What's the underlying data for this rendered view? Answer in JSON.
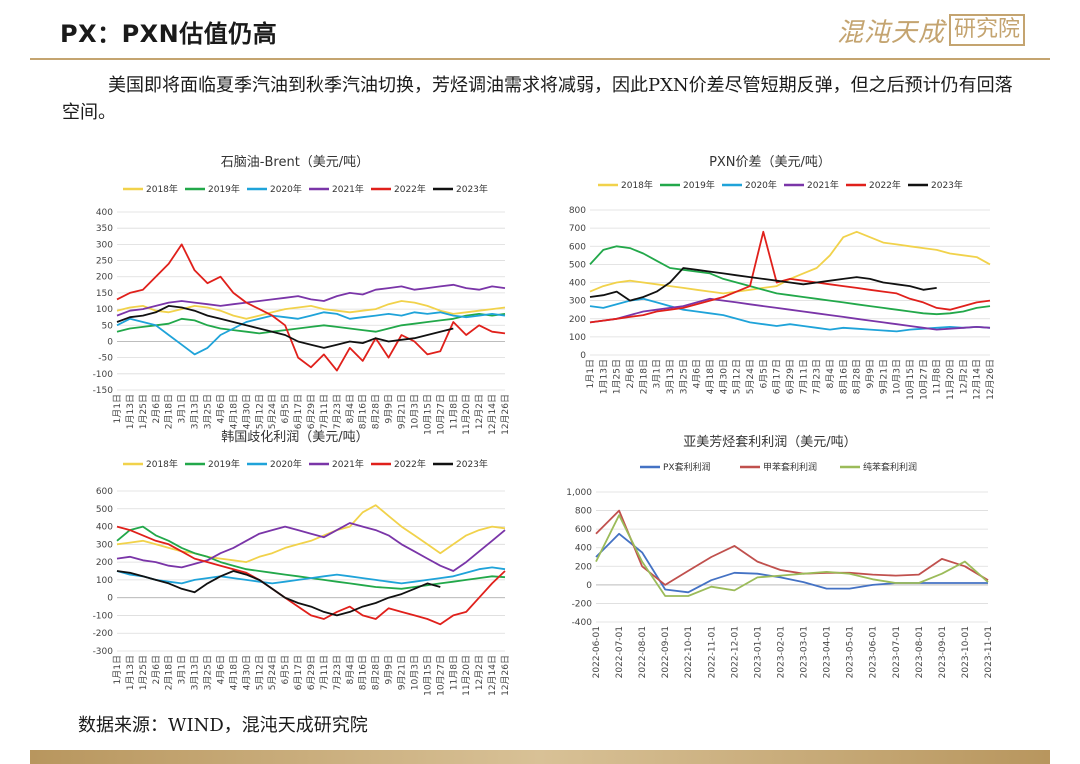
{
  "header": {
    "title": "PX：PXN估值仍高",
    "logo_text": "混沌天成",
    "logo_box_text": "研究院",
    "accent_color": "#c4a470"
  },
  "intro": "美国即将面临夏季汽油到秋季汽油切换，芳烃调油需求将减弱，因此PXN价差尽管短期反弹，但之后预计仍有回落空间。",
  "source": "数据来源：WIND，混沌天成研究院",
  "chart_data": [
    {
      "type": "line",
      "title": "石脑油-Brent（美元/吨）",
      "ylim": [
        -150,
        400
      ],
      "yticks": [
        400,
        350,
        300,
        250,
        200,
        150,
        100,
        50,
        0,
        -50,
        -100,
        -150
      ],
      "categories": [
        "1月1日",
        "1月13日",
        "1月25日",
        "2月6日",
        "2月18日",
        "3月1日",
        "3月13日",
        "3月25日",
        "4月6日",
        "4月18日",
        "4月30日",
        "5月12日",
        "5月24日",
        "6月5日",
        "6月17日",
        "6月29日",
        "7月11日",
        "7月23日",
        "8月4日",
        "8月16日",
        "8月28日",
        "9月9日",
        "9月21日",
        "10月3日",
        "10月15日",
        "10月27日",
        "11月8日",
        "11月20日",
        "12月2日",
        "12月14日",
        "12月26日"
      ],
      "series": [
        {
          "name": "2018年",
          "color": "#f1d24b",
          "values": [
            95,
            105,
            110,
            95,
            90,
            100,
            110,
            105,
            95,
            80,
            70,
            80,
            90,
            100,
            105,
            110,
            100,
            95,
            90,
            95,
            100,
            115,
            125,
            120,
            110,
            95,
            85,
            90,
            95,
            100,
            105
          ]
        },
        {
          "name": "2019年",
          "color": "#22a84a",
          "values": [
            30,
            40,
            45,
            50,
            55,
            70,
            65,
            50,
            40,
            35,
            30,
            25,
            30,
            35,
            40,
            45,
            50,
            45,
            40,
            35,
            30,
            40,
            50,
            55,
            60,
            65,
            70,
            80,
            85,
            80,
            85
          ]
        },
        {
          "name": "2020年",
          "color": "#1fa3d9",
          "values": [
            50,
            70,
            60,
            50,
            20,
            -10,
            -40,
            -20,
            20,
            40,
            60,
            70,
            80,
            75,
            70,
            80,
            90,
            85,
            70,
            75,
            80,
            85,
            80,
            90,
            85,
            90,
            80,
            75,
            80,
            85,
            80
          ]
        },
        {
          "name": "2021年",
          "color": "#7a35a8",
          "values": [
            80,
            95,
            100,
            110,
            120,
            125,
            120,
            115,
            110,
            115,
            120,
            125,
            130,
            135,
            140,
            130,
            125,
            140,
            150,
            145,
            160,
            165,
            170,
            160,
            165,
            170,
            175,
            165,
            160,
            170,
            165
          ]
        },
        {
          "name": "2022年",
          "color": "#e0201b",
          "values": [
            130,
            150,
            160,
            200,
            240,
            300,
            220,
            180,
            200,
            150,
            120,
            100,
            80,
            50,
            -50,
            -80,
            -40,
            -90,
            -20,
            -60,
            10,
            -50,
            20,
            0,
            -40,
            -30,
            60,
            20,
            50,
            30,
            25
          ]
        },
        {
          "name": "2023年",
          "color": "#111111",
          "values": [
            60,
            75,
            80,
            90,
            110,
            105,
            95,
            80,
            70,
            60,
            50,
            40,
            30,
            20,
            0,
            -10,
            -20,
            -10,
            0,
            -5,
            10,
            0,
            5,
            10,
            20,
            30,
            40,
            null,
            null,
            null,
            null
          ]
        }
      ]
    },
    {
      "type": "line",
      "title": "PXN价差（美元/吨）",
      "ylim": [
        0,
        800
      ],
      "yticks": [
        800,
        700,
        600,
        500,
        400,
        300,
        200,
        100,
        0
      ],
      "categories": [
        "1月1日",
        "1月13日",
        "1月25日",
        "2月6日",
        "2月18日",
        "3月1日",
        "3月13日",
        "3月25日",
        "4月6日",
        "4月18日",
        "4月30日",
        "5月12日",
        "5月24日",
        "6月5日",
        "6月17日",
        "6月29日",
        "7月11日",
        "7月23日",
        "8月4日",
        "8月16日",
        "8月28日",
        "9月9日",
        "9月21日",
        "10月3日",
        "10月15日",
        "10月27日",
        "11月8日",
        "11月20日",
        "12月2日",
        "12月14日",
        "12月26日"
      ],
      "series": [
        {
          "name": "2018年",
          "color": "#f1d24b",
          "values": [
            350,
            380,
            400,
            410,
            400,
            390,
            380,
            370,
            360,
            350,
            340,
            350,
            360,
            370,
            380,
            420,
            450,
            480,
            550,
            650,
            680,
            650,
            620,
            610,
            600,
            590,
            580,
            560,
            550,
            540,
            500
          ]
        },
        {
          "name": "2019年",
          "color": "#22a84a",
          "values": [
            500,
            580,
            600,
            590,
            560,
            520,
            480,
            470,
            460,
            450,
            420,
            400,
            380,
            360,
            340,
            330,
            320,
            310,
            300,
            290,
            280,
            270,
            260,
            250,
            240,
            230,
            225,
            230,
            240,
            260,
            270
          ]
        },
        {
          "name": "2020年",
          "color": "#1fa3d9",
          "values": [
            270,
            260,
            280,
            300,
            310,
            290,
            270,
            250,
            240,
            230,
            220,
            200,
            180,
            170,
            160,
            170,
            160,
            150,
            140,
            150,
            145,
            140,
            135,
            130,
            140,
            145,
            150,
            155,
            150,
            155,
            150
          ]
        },
        {
          "name": "2021年",
          "color": "#7a35a8",
          "values": [
            180,
            190,
            200,
            220,
            240,
            250,
            260,
            270,
            290,
            310,
            300,
            290,
            280,
            270,
            260,
            250,
            240,
            230,
            220,
            210,
            200,
            190,
            180,
            170,
            160,
            150,
            140,
            145,
            150,
            155,
            150
          ]
        },
        {
          "name": "2022年",
          "color": "#e0201b",
          "values": [
            180,
            190,
            200,
            210,
            220,
            240,
            250,
            260,
            280,
            300,
            320,
            350,
            380,
            680,
            400,
            420,
            410,
            400,
            390,
            380,
            370,
            360,
            350,
            340,
            310,
            290,
            260,
            250,
            270,
            290,
            300
          ]
        },
        {
          "name": "2023年",
          "color": "#111111",
          "values": [
            320,
            330,
            350,
            300,
            320,
            350,
            400,
            480,
            470,
            460,
            450,
            440,
            430,
            420,
            410,
            400,
            390,
            400,
            410,
            420,
            430,
            420,
            400,
            390,
            380,
            360,
            370,
            null,
            null,
            null,
            null
          ]
        }
      ]
    },
    {
      "type": "line",
      "title": "韩国歧化利润（美元/吨）",
      "ylim": [
        -300,
        600
      ],
      "yticks": [
        600,
        500,
        400,
        300,
        200,
        100,
        0,
        -100,
        -200,
        -300
      ],
      "categories": [
        "1月1日",
        "1月13日",
        "1月25日",
        "2月6日",
        "2月18日",
        "3月1日",
        "3月13日",
        "3月25日",
        "4月6日",
        "4月18日",
        "4月30日",
        "5月12日",
        "5月24日",
        "6月5日",
        "6月17日",
        "6月29日",
        "7月11日",
        "7月23日",
        "8月4日",
        "8月16日",
        "8月28日",
        "9月9日",
        "9月21日",
        "10月3日",
        "10月15日",
        "10月27日",
        "11月8日",
        "11月20日",
        "12月2日",
        "12月14日",
        "12月26日"
      ],
      "series": [
        {
          "name": "2018年",
          "color": "#f1d24b",
          "values": [
            300,
            310,
            320,
            300,
            280,
            260,
            250,
            230,
            220,
            210,
            200,
            230,
            250,
            280,
            300,
            320,
            350,
            380,
            400,
            480,
            520,
            460,
            400,
            350,
            300,
            250,
            300,
            350,
            380,
            400,
            390
          ]
        },
        {
          "name": "2019年",
          "color": "#22a84a",
          "values": [
            320,
            380,
            400,
            350,
            320,
            280,
            250,
            230,
            200,
            180,
            160,
            150,
            140,
            130,
            120,
            110,
            100,
            90,
            80,
            70,
            60,
            55,
            50,
            60,
            70,
            80,
            90,
            100,
            110,
            120,
            115
          ]
        },
        {
          "name": "2020年",
          "color": "#1fa3d9",
          "values": [
            150,
            130,
            120,
            100,
            90,
            80,
            100,
            110,
            120,
            110,
            100,
            90,
            80,
            90,
            100,
            110,
            120,
            130,
            120,
            110,
            100,
            90,
            80,
            90,
            100,
            110,
            120,
            140,
            160,
            170,
            160
          ]
        },
        {
          "name": "2021年",
          "color": "#7a35a8",
          "values": [
            220,
            230,
            210,
            200,
            180,
            170,
            190,
            210,
            250,
            280,
            320,
            360,
            380,
            400,
            380,
            360,
            340,
            380,
            420,
            400,
            380,
            350,
            300,
            260,
            220,
            180,
            150,
            200,
            260,
            320,
            380
          ]
        },
        {
          "name": "2022年",
          "color": "#e0201b",
          "values": [
            400,
            380,
            350,
            320,
            300,
            260,
            220,
            200,
            180,
            160,
            140,
            100,
            50,
            0,
            -50,
            -100,
            -120,
            -80,
            -50,
            -100,
            -120,
            -60,
            -80,
            -100,
            -120,
            -150,
            -100,
            -80,
            0,
            80,
            150
          ]
        },
        {
          "name": "2023年",
          "color": "#111111",
          "values": [
            150,
            140,
            120,
            100,
            80,
            50,
            30,
            80,
            120,
            150,
            130,
            100,
            50,
            0,
            -30,
            -50,
            -80,
            -100,
            -80,
            -50,
            -30,
            0,
            20,
            50,
            80,
            60,
            null,
            null,
            null,
            null,
            null
          ]
        }
      ]
    },
    {
      "type": "line",
      "title": "亚美芳烃套利利润（美元/吨）",
      "ylim": [
        -400,
        1000
      ],
      "yticks": [
        "1,000",
        "800",
        "600",
        "400",
        "200",
        "0",
        "-200",
        "-400"
      ],
      "ytick_values": [
        1000,
        800,
        600,
        400,
        200,
        0,
        -200,
        -400
      ],
      "categories": [
        "2022-06-01",
        "2022-07-01",
        "2022-08-01",
        "2022-09-01",
        "2022-10-01",
        "2022-11-01",
        "2022-12-01",
        "2023-01-01",
        "2023-02-01",
        "2023-03-01",
        "2023-04-01",
        "2023-05-01",
        "2023-06-01",
        "2023-07-01",
        "2023-08-01",
        "2023-09-01",
        "2023-10-01",
        "2023-11-01"
      ],
      "series": [
        {
          "name": "PX套利利润",
          "color": "#4472c4",
          "values": [
            300,
            550,
            350,
            -50,
            -80,
            50,
            130,
            120,
            80,
            30,
            -40,
            -40,
            0,
            20,
            20,
            20,
            20,
            20
          ]
        },
        {
          "name": "甲苯套利利润",
          "color": "#c0504d",
          "values": [
            550,
            800,
            200,
            0,
            150,
            300,
            420,
            250,
            160,
            120,
            130,
            130,
            110,
            100,
            110,
            280,
            200,
            50
          ]
        },
        {
          "name": "纯苯套利利润",
          "color": "#9bbb59",
          "values": [
            250,
            750,
            250,
            -120,
            -120,
            -20,
            -60,
            80,
            100,
            120,
            140,
            120,
            60,
            20,
            20,
            120,
            250,
            30
          ]
        }
      ]
    }
  ]
}
